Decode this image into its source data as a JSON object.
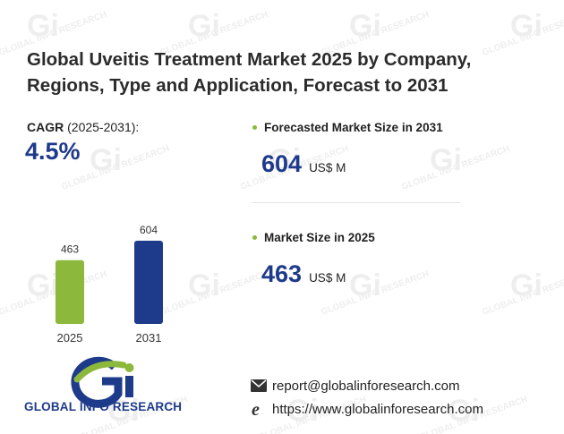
{
  "title": "Global Uveitis Treatment Market 2025 by Company, Regions, Type and Application, Forecast to 2031",
  "cagr": {
    "label": "CAGR",
    "period": "(2025-2031):",
    "value": "4.5%"
  },
  "stats": [
    {
      "label": "Forecasted Market Size in 2031",
      "value": "604",
      "unit": "US$ M"
    },
    {
      "label": "Market Size in 2025",
      "value": "463",
      "unit": "US$ M"
    }
  ],
  "chart_data": {
    "type": "bar",
    "categories": [
      "2025",
      "2031"
    ],
    "values": [
      463,
      604
    ],
    "ylim": [
      0,
      604
    ],
    "colors": [
      "#8cb83b",
      "#1e3a8a"
    ],
    "grid": false
  },
  "logo": {
    "text": "GLOBAL INFO RESEARCH"
  },
  "watermark": {
    "text": "GLOBAL INFO RESEARCH"
  },
  "contact": {
    "email": "report@globalinforesearch.com",
    "website": "https://www.globalinforesearch.com",
    "email_icon": "envelope-icon",
    "web_icon": "internet-explorer-icon"
  },
  "colors": {
    "accent_blue": "#1e3a8a",
    "accent_green": "#8cb83b"
  }
}
